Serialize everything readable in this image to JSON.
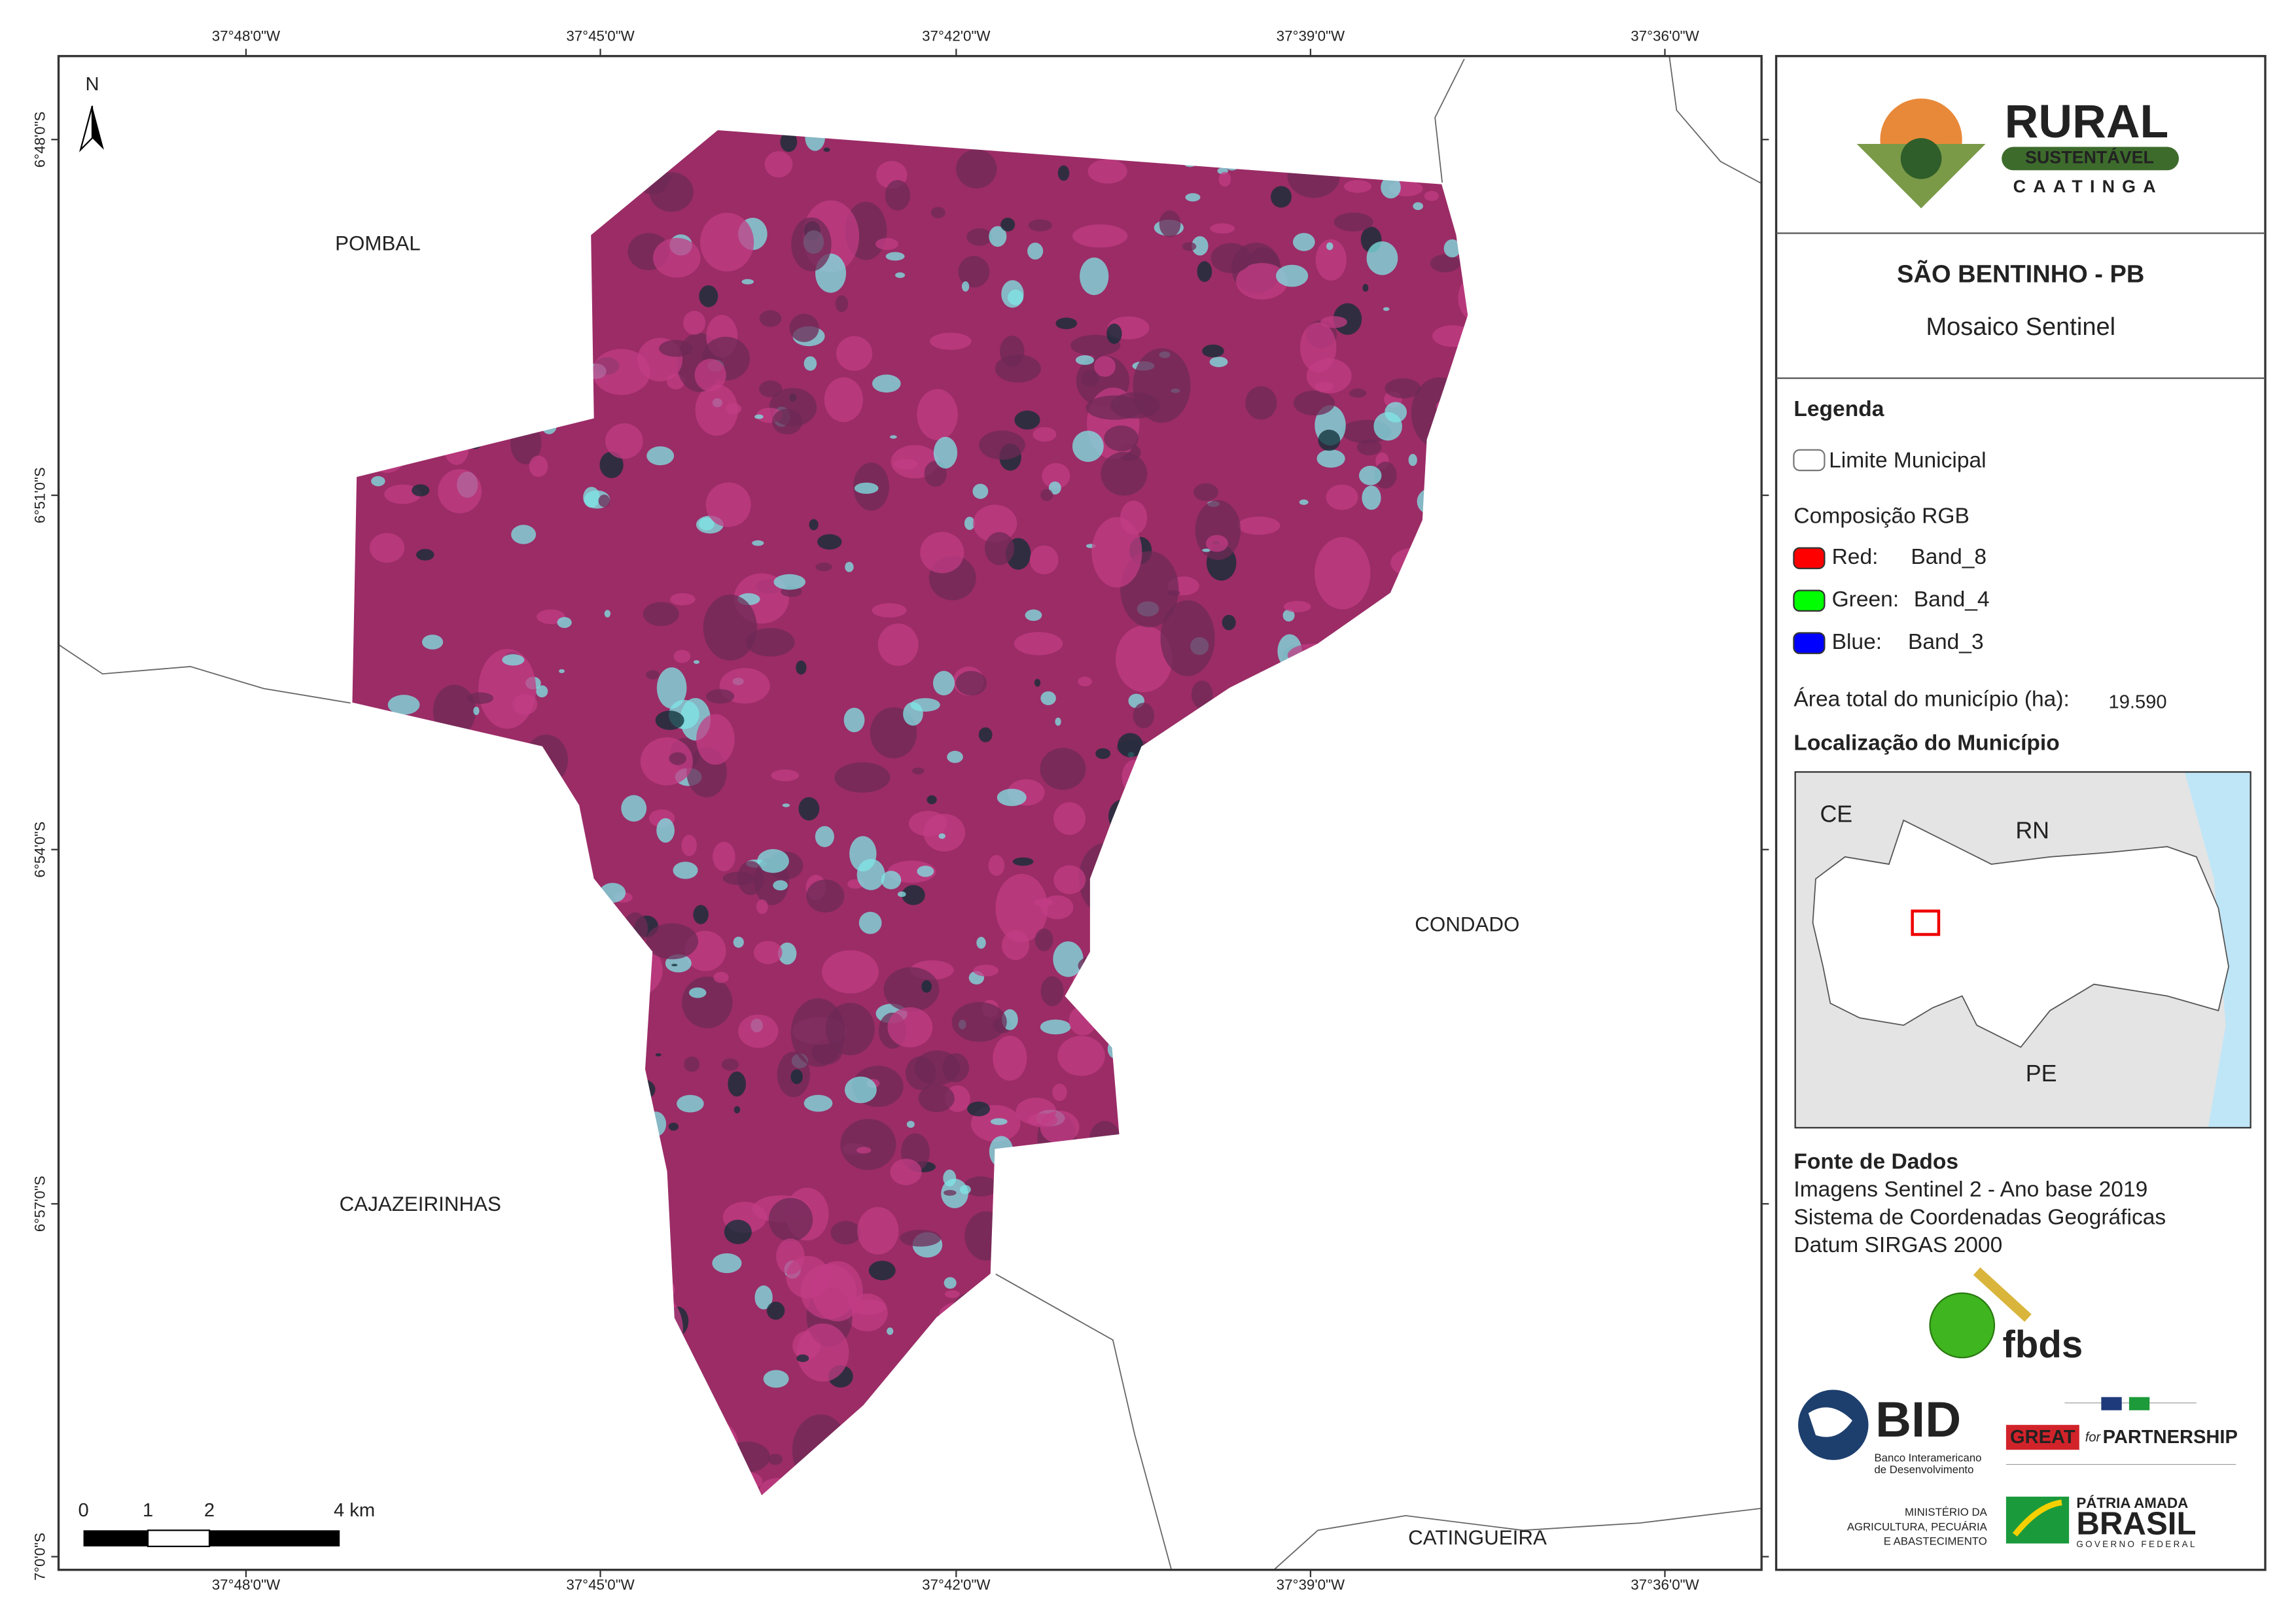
{
  "map": {
    "x_ticks": [
      "37°48'0\"W",
      "37°45'0\"W",
      "37°42'0\"W",
      "37°39'0\"W",
      "37°36'0\"W"
    ],
    "y_ticks": [
      "6°48'0\"S",
      "6°51'0\"S",
      "6°54'0\"S",
      "6°57'0\"S",
      "7°0'0\"S"
    ],
    "north": "N",
    "neighbors": [
      "POMBAL",
      "CONDADO",
      "CAJAZEIRINHAS",
      "CATINGUEIRA"
    ],
    "scale_labels": [
      "0",
      "1",
      "2",
      "4 km"
    ]
  },
  "panel": {
    "logo": {
      "title": "RURAL",
      "subtitle": "SUSTENTÁVEL",
      "tagline": "CAATINGA"
    },
    "title": "SÃO BENTINHO - PB",
    "subtitle": "Mosaico Sentinel",
    "legend": {
      "heading": "Legenda",
      "boundary": "Limite Municipal",
      "rgb_heading": "Composição RGB",
      "bands": [
        {
          "channel": "Red:",
          "band": "Band_8",
          "color": "#ff0000"
        },
        {
          "channel": "Green:",
          "band": "Band_4",
          "color": "#00ff00"
        },
        {
          "channel": "Blue:",
          "band": "Band_3",
          "color": "#0000ff"
        }
      ]
    },
    "area": {
      "label": "Área total do município (ha):",
      "value": "19.590"
    },
    "location": {
      "heading": "Localização do Município",
      "states": [
        "CE",
        "RN",
        "PE"
      ]
    },
    "sources": {
      "heading": "Fonte de Dados",
      "lines": [
        "Imagens Sentinel 2 - Ano base 2019",
        "Sistema de Coordenadas Geográficas",
        "Datum SIRGAS 2000"
      ]
    },
    "partners": {
      "fbds": "fbds",
      "bid": "BID",
      "bid_name": [
        "Banco Interamericano",
        "de Desenvolvimento"
      ],
      "great": "GREAT",
      "great_for": "for",
      "great_partnership": "PARTNERSHIP",
      "ministry": [
        "MINISTÉRIO DA",
        "AGRICULTURA, PECUÁRIA",
        "E ABASTECIMENTO"
      ],
      "brasil": [
        "PÁTRIA AMADA",
        "BRASIL",
        "GOVERNO FEDERAL"
      ]
    }
  }
}
